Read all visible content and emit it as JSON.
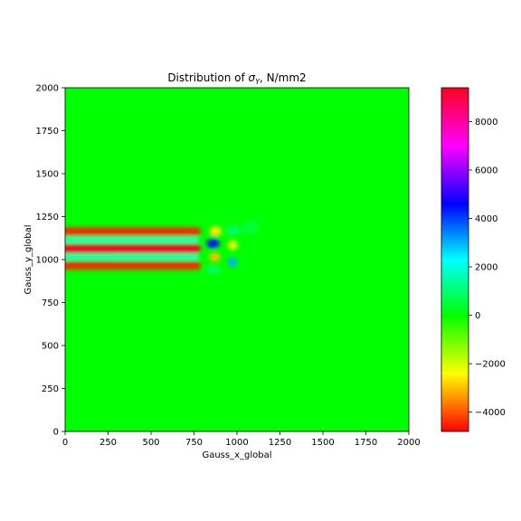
{
  "chart_data": {
    "type": "heatmap",
    "title_prefix": "Distribution of ",
    "title_sigma": "σ",
    "title_subscript": "Y",
    "title_suffix": ", N/mm2",
    "xlabel": "Gauss_x_global",
    "ylabel": "Gauss_y_global",
    "xlim": [
      0,
      2000
    ],
    "ylim": [
      0,
      2000
    ],
    "x_ticks": [
      "0",
      "250",
      "500",
      "750",
      "1000",
      "1250",
      "1500",
      "1750",
      "2000"
    ],
    "y_ticks": [
      "0",
      "250",
      "500",
      "750",
      "1000",
      "1250",
      "1500",
      "1750",
      "2000"
    ],
    "grid": false,
    "colormap": "hsv",
    "colorbar": {
      "range": [
        -4800,
        9400
      ],
      "ticks": [
        "−4000",
        "−2000",
        "0",
        "2000",
        "4000",
        "6000",
        "8000"
      ],
      "tick_values": [
        -4000,
        -2000,
        0,
        2000,
        4000,
        6000,
        8000
      ],
      "stops": [
        {
          "value": -4800,
          "color": "#ff0000"
        },
        {
          "value": -2400,
          "color": "#ffff00"
        },
        {
          "value": 0,
          "color": "#00ff00"
        },
        {
          "value": 2300,
          "color": "#00ffff"
        },
        {
          "value": 4600,
          "color": "#0000ff"
        },
        {
          "value": 7000,
          "color": "#ff00ff"
        },
        {
          "value": 9400,
          "color": "#ff0020"
        }
      ]
    },
    "background_value": 0,
    "features": [
      {
        "label": "band-upper",
        "kind": "band",
        "x_start": 0,
        "x_end": 790,
        "y": 1165,
        "half_width": 22,
        "value": -4500
      },
      {
        "label": "band-middle",
        "kind": "band",
        "x_start": 0,
        "x_end": 790,
        "y": 1065,
        "half_width": 24,
        "value": 9200
      },
      {
        "label": "band-lower",
        "kind": "band",
        "x_start": 0,
        "x_end": 790,
        "y": 965,
        "half_width": 22,
        "value": -4500
      },
      {
        "label": "band-gap-upper",
        "kind": "band",
        "x_start": 0,
        "x_end": 780,
        "y": 1115,
        "half_width": 12,
        "value": 2300
      },
      {
        "label": "band-gap-lower",
        "kind": "band",
        "x_start": 0,
        "x_end": 780,
        "y": 1015,
        "half_width": 12,
        "value": 2300
      },
      {
        "label": "tip-upper",
        "kind": "spot",
        "x": 875,
        "y": 1165,
        "rx": 35,
        "ry": 28,
        "value": -2600
      },
      {
        "label": "tip-middle",
        "kind": "spot",
        "x": 860,
        "y": 1095,
        "rx": 38,
        "ry": 26,
        "value": 4500
      },
      {
        "label": "tip-lower",
        "kind": "spot",
        "x": 870,
        "y": 1015,
        "rx": 32,
        "ry": 26,
        "value": -3000
      },
      {
        "label": "spot-far-upper",
        "kind": "spot",
        "x": 975,
        "y": 1085,
        "rx": 28,
        "ry": 26,
        "value": -2400
      },
      {
        "label": "spot-far-lower",
        "kind": "spot",
        "x": 975,
        "y": 985,
        "rx": 28,
        "ry": 26,
        "value": 3000
      },
      {
        "label": "spot-faint-1",
        "kind": "spot",
        "x": 980,
        "y": 1170,
        "rx": 40,
        "ry": 30,
        "value": 900
      },
      {
        "label": "spot-faint-2",
        "kind": "spot",
        "x": 1080,
        "y": 1190,
        "rx": 50,
        "ry": 40,
        "value": 500
      },
      {
        "label": "spot-faint-3",
        "kind": "spot",
        "x": 860,
        "y": 940,
        "rx": 40,
        "ry": 20,
        "value": 1000
      }
    ]
  }
}
